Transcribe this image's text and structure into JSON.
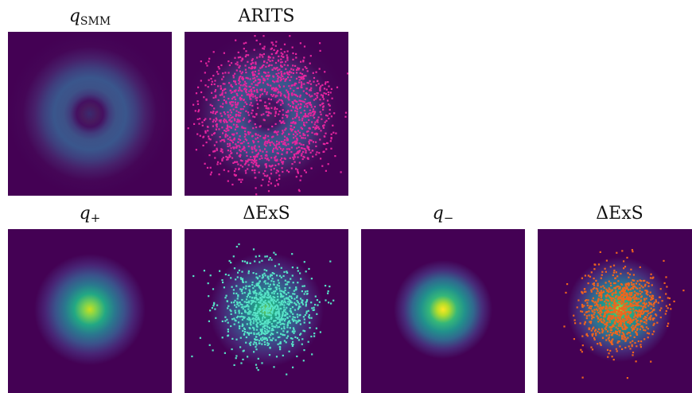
{
  "panels": [
    {
      "id": "q-smm",
      "title_base": "q",
      "title_sub": "SMM",
      "math": true
    },
    {
      "id": "arits",
      "title": "ARITS",
      "math": false
    },
    {
      "id": "q-plus",
      "title_base": "q",
      "title_sign": "+",
      "math": true
    },
    {
      "id": "dexs-plus",
      "title": "ΔExS",
      "math": false
    },
    {
      "id": "q-minus",
      "title_base": "q",
      "title_sign": "−",
      "math": true
    },
    {
      "id": "dexs-minus",
      "title": "ΔExS",
      "math": false
    }
  ],
  "colors": {
    "background": "#440154",
    "ring": "#3b528b",
    "gaussian_center": "#fde725",
    "arits_samples": "#e6259f",
    "dexs_plus_samples": "#57e3c7",
    "dexs_minus_samples": "#f0641e"
  }
}
